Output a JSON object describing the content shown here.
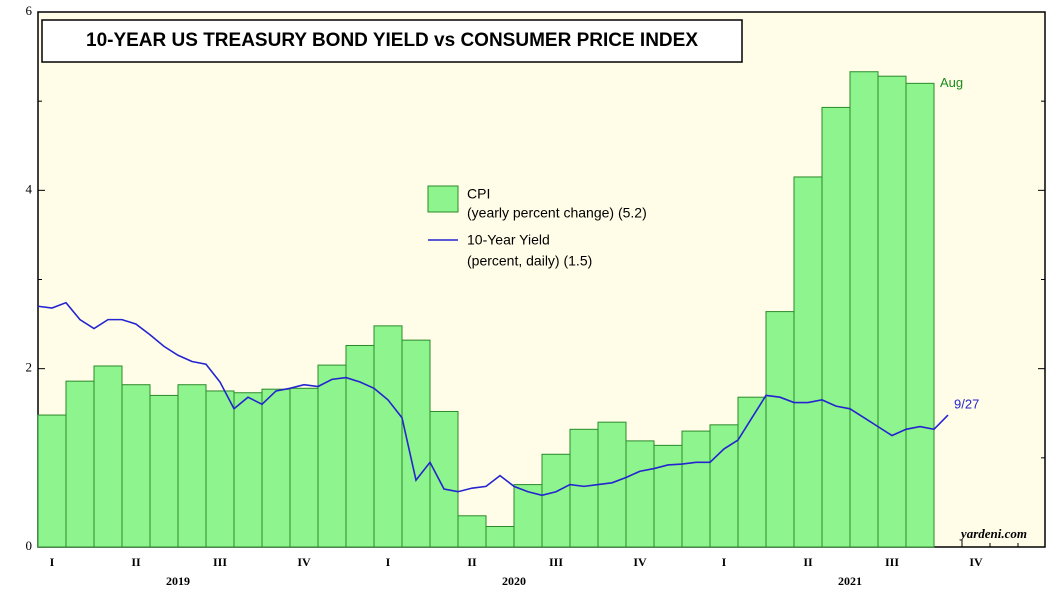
{
  "chart_data": {
    "type": "bar",
    "title": "10-YEAR US TREASURY BOND YIELD vs CONSUMER PRICE INDEX",
    "quarters": [
      "I",
      "II",
      "III",
      "IV",
      "I",
      "II",
      "III",
      "IV",
      "I",
      "II",
      "III",
      "IV"
    ],
    "years": [
      "2019",
      "2020",
      "2021"
    ],
    "ylim": [
      0,
      6
    ],
    "yticks": [
      0,
      2,
      4,
      6
    ],
    "yminorticks": [
      1,
      3,
      5
    ],
    "series": [
      {
        "name": "CPI",
        "description": "(yearly percent change) (5.2)",
        "type": "bar",
        "color": "#8ef48e",
        "values": [
          1.48,
          1.86,
          2.03,
          1.82,
          1.7,
          1.82,
          1.75,
          1.73,
          1.77,
          1.78,
          2.04,
          2.26,
          2.48,
          2.32,
          1.52,
          0.35,
          0.23,
          0.7,
          1.04,
          1.32,
          1.4,
          1.19,
          1.14,
          1.3,
          1.37,
          1.68,
          2.64,
          4.15,
          4.93,
          5.33,
          5.28,
          5.2
        ],
        "end_label": "Aug"
      },
      {
        "name": "10-Year Yield",
        "description": "(percent, daily) (1.5)",
        "type": "line",
        "color": "#2424d0",
        "values": [
          2.7,
          2.68,
          2.74,
          2.55,
          2.45,
          2.55,
          2.55,
          2.5,
          2.38,
          2.25,
          2.15,
          2.08,
          2.05,
          1.85,
          1.55,
          1.68,
          1.6,
          1.75,
          1.78,
          1.82,
          1.8,
          1.88,
          1.9,
          1.85,
          1.78,
          1.65,
          1.45,
          0.75,
          0.95,
          0.65,
          0.62,
          0.66,
          0.68,
          0.8,
          0.68,
          0.62,
          0.58,
          0.62,
          0.7,
          0.68,
          0.7,
          0.72,
          0.78,
          0.85,
          0.88,
          0.92,
          0.93,
          0.95,
          0.95,
          1.1,
          1.2,
          1.45,
          1.7,
          1.68,
          1.62,
          1.62,
          1.65,
          1.58,
          1.55,
          1.45,
          1.35,
          1.25,
          1.32,
          1.35,
          1.32,
          1.48
        ],
        "end_label": "9/27"
      }
    ],
    "source": "yardeni.com"
  }
}
